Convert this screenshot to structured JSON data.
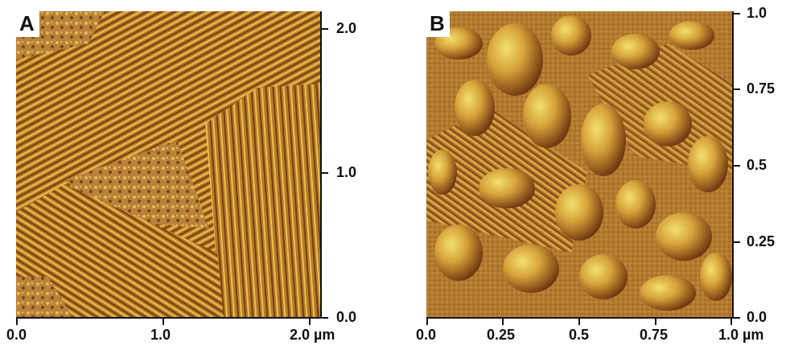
{
  "panels": [
    {
      "label": "A",
      "x_ticks": [
        "0.0",
        "1.0",
        "2.0 µm"
      ],
      "y_ticks": [
        "0.0",
        "1.0",
        "2.0"
      ]
    },
    {
      "label": "B",
      "x_ticks": [
        "0.0",
        "0.25",
        "0.5",
        "0.75",
        "1.0 µm"
      ],
      "y_ticks": [
        "0.0",
        "0.25",
        "0.5",
        "0.75",
        "1.0"
      ]
    }
  ],
  "colors": {
    "base": "#b57a2b",
    "dark": "#7a3d10",
    "light": "#e8c24a",
    "highlight": "#f2e070"
  }
}
